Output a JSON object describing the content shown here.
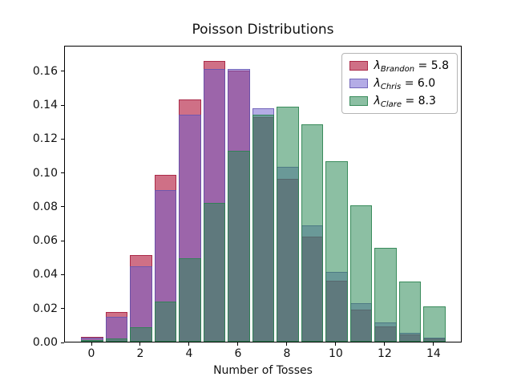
{
  "title": "Poisson Distributions",
  "x_axis": {
    "label": "Number of Tosses"
  },
  "legend": {
    "position": "upper right",
    "entries": [
      {
        "symbol": "λ",
        "subscript": "Brandon",
        "equals": " = ",
        "value": "5.8"
      },
      {
        "symbol": "λ",
        "subscript": "Chris",
        "equals": " = ",
        "value": "6.0"
      },
      {
        "symbol": "λ",
        "subscript": "Clare",
        "equals": " = ",
        "value": "8.3"
      }
    ]
  },
  "chart_data": {
    "type": "bar",
    "title": "Poisson Distributions",
    "xlabel": "Number of Tosses",
    "ylabel": "",
    "grid": false,
    "legend_position": "upper right",
    "x": [
      0,
      1,
      2,
      3,
      4,
      5,
      6,
      7,
      8,
      9,
      10,
      11,
      12,
      13,
      14
    ],
    "xticks": [
      0,
      2,
      4,
      6,
      8,
      10,
      12,
      14
    ],
    "yticks": [
      {
        "label": "0.00",
        "value": 0.0
      },
      {
        "label": "0.02",
        "value": 0.02
      },
      {
        "label": "0.04",
        "value": 0.04
      },
      {
        "label": "0.06",
        "value": 0.06
      },
      {
        "label": "0.08",
        "value": 0.08
      },
      {
        "label": "0.10",
        "value": 0.1
      },
      {
        "label": "0.12",
        "value": 0.12
      },
      {
        "label": "0.14",
        "value": 0.14
      },
      {
        "label": "0.16",
        "value": 0.16
      }
    ],
    "xlim": [
      -1.115,
      15.15
    ],
    "ylim": [
      0,
      0.175
    ],
    "bar_width": 0.9,
    "series": [
      {
        "id": "brandon",
        "name": "λ_Brandon = 5.8",
        "lambda": 5.8,
        "fill": "rgba(178,24,60,0.62)",
        "edge": "rgba(165,30,62,0.85)",
        "values": [
          0.003,
          0.0176,
          0.0509,
          0.0985,
          0.1428,
          0.1656,
          0.1601,
          0.1326,
          0.0962,
          0.062,
          0.0359,
          0.019,
          0.0092,
          0.0041,
          0.0017
        ]
      },
      {
        "id": "chris",
        "name": "λ_Chris = 6.0",
        "lambda": 6.0,
        "fill": "rgba(106,90,205,0.50)",
        "edge": "rgba(100,85,175,0.80)",
        "values": [
          0.0025,
          0.0149,
          0.0446,
          0.0892,
          0.1339,
          0.1606,
          0.1606,
          0.1377,
          0.1033,
          0.0688,
          0.0413,
          0.0225,
          0.0113,
          0.0052,
          0.0022
        ]
      },
      {
        "id": "clare",
        "name": "λ_Clare = 8.3",
        "lambda": 8.3,
        "fill": "rgba(46,139,87,0.55)",
        "edge": "rgba(44,130,80,0.85)",
        "values": [
          0.0002,
          0.0021,
          0.0086,
          0.0237,
          0.0491,
          0.0816,
          0.1128,
          0.1338,
          0.1388,
          0.128,
          0.1063,
          0.0802,
          0.0554,
          0.0354,
          0.021
        ]
      }
    ]
  }
}
